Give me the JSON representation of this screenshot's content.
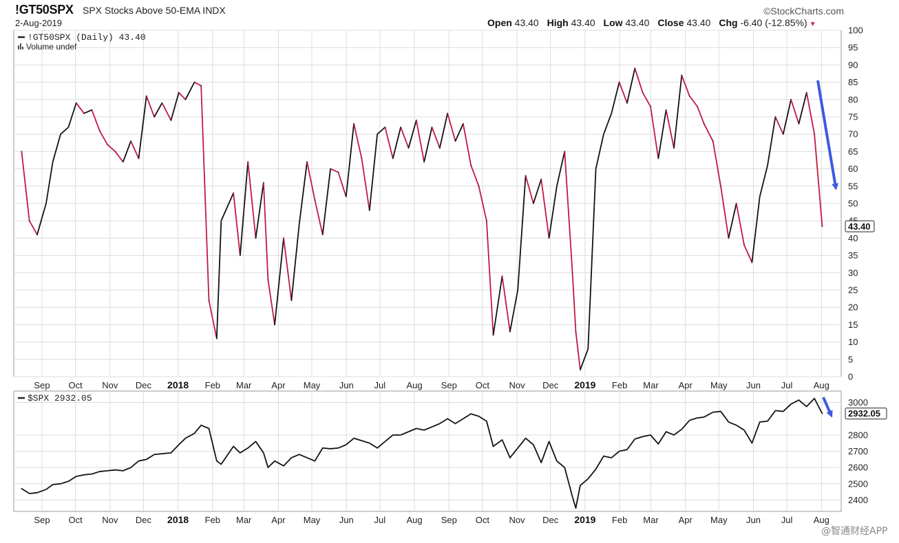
{
  "header": {
    "symbol": "!GT50SPX",
    "description": "SPX Stocks Above 50-EMA INDX",
    "date": "2-Aug-2019",
    "brand": "©StockCharts.com",
    "ohlc": [
      {
        "label": "Open",
        "value": "43.40"
      },
      {
        "label": "High",
        "value": "43.40"
      },
      {
        "label": "Low",
        "value": "43.40"
      },
      {
        "label": "Close",
        "value": "43.40"
      },
      {
        "label": "Chg",
        "value": "-6.40 (-12.85%)"
      }
    ]
  },
  "watermark": "@智通财经APP",
  "colors": {
    "up": "#111111",
    "down": "#c2183f",
    "arrow": "#3d5ae0",
    "grid": "#dcdcdc"
  },
  "chart_data": [
    {
      "type": "line",
      "legend": "!GT50SPX (Daily) 43.40",
      "legend2": "Volume undef",
      "last_label": "43.40",
      "ylim": [
        0,
        100
      ],
      "y_ticks": [
        0,
        5,
        10,
        15,
        20,
        25,
        30,
        35,
        40,
        45,
        50,
        55,
        60,
        65,
        70,
        75,
        80,
        85,
        90,
        95,
        100
      ],
      "x_ticks": [
        "Sep",
        "Oct",
        "Nov",
        "Dec",
        "2018",
        "Feb",
        "Mar",
        "Apr",
        "May",
        "Jun",
        "Jul",
        "Aug",
        "Sep",
        "Oct",
        "Nov",
        "Dec",
        "2019",
        "Feb",
        "Mar",
        "Apr",
        "May",
        "Jun",
        "Jul",
        "Aug"
      ],
      "series": [
        {
          "x": [
            "2017-08-14",
            "2017-08-21",
            "2017-08-28",
            "2017-09-05",
            "2017-09-11",
            "2017-09-18",
            "2017-09-25",
            "2017-10-02",
            "2017-10-09",
            "2017-10-16",
            "2017-10-23",
            "2017-10-30",
            "2017-11-06",
            "2017-11-13",
            "2017-11-20",
            "2017-11-27",
            "2017-12-04",
            "2017-12-11",
            "2017-12-18",
            "2017-12-26",
            "2018-01-02",
            "2018-01-08",
            "2018-01-16",
            "2018-01-22",
            "2018-01-29",
            "2018-02-05",
            "2018-02-09",
            "2018-02-20",
            "2018-02-26",
            "2018-03-05",
            "2018-03-12",
            "2018-03-19",
            "2018-03-23",
            "2018-03-29",
            "2018-04-06",
            "2018-04-13",
            "2018-04-20",
            "2018-04-27",
            "2018-05-04",
            "2018-05-11",
            "2018-05-18",
            "2018-05-25",
            "2018-06-01",
            "2018-06-08",
            "2018-06-15",
            "2018-06-22",
            "2018-06-29",
            "2018-07-06",
            "2018-07-13",
            "2018-07-20",
            "2018-07-27",
            "2018-08-03",
            "2018-08-10",
            "2018-08-17",
            "2018-08-24",
            "2018-08-31",
            "2018-09-07",
            "2018-09-14",
            "2018-09-21",
            "2018-09-28",
            "2018-10-05",
            "2018-10-11",
            "2018-10-19",
            "2018-10-26",
            "2018-11-02",
            "2018-11-09",
            "2018-11-16",
            "2018-11-23",
            "2018-11-30",
            "2018-12-07",
            "2018-12-14",
            "2018-12-21",
            "2018-12-24",
            "2018-12-28",
            "2019-01-04",
            "2019-01-11",
            "2019-01-18",
            "2019-01-25",
            "2019-02-01",
            "2019-02-08",
            "2019-02-15",
            "2019-02-22",
            "2019-03-01",
            "2019-03-08",
            "2019-03-15",
            "2019-03-22",
            "2019-03-29",
            "2019-04-05",
            "2019-04-12",
            "2019-04-18",
            "2019-04-26",
            "2019-05-03",
            "2019-05-10",
            "2019-05-17",
            "2019-05-24",
            "2019-05-31",
            "2019-06-07",
            "2019-06-14",
            "2019-06-21",
            "2019-06-28",
            "2019-07-05",
            "2019-07-12",
            "2019-07-19",
            "2019-07-26",
            "2019-08-02"
          ],
          "values": [
            65,
            45,
            41,
            50,
            62,
            70,
            72,
            79,
            76,
            77,
            71,
            67,
            65,
            62,
            68,
            63,
            81,
            75,
            79,
            74,
            82,
            80,
            85,
            84,
            22,
            11,
            45,
            53,
            35,
            62,
            40,
            56,
            28,
            15,
            40,
            22,
            44,
            62,
            51,
            41,
            60,
            59,
            52,
            73,
            63,
            48,
            70,
            72,
            63,
            72,
            66,
            74,
            62,
            72,
            66,
            76,
            68,
            73,
            61,
            55,
            45,
            12,
            29,
            13,
            25,
            58,
            50,
            57,
            40,
            55,
            65,
            30,
            13,
            2,
            8,
            60,
            70,
            76,
            85,
            79,
            89,
            82,
            78,
            63,
            77,
            66,
            87,
            81,
            78,
            73,
            68,
            55,
            40,
            50,
            38,
            33,
            52,
            61,
            75,
            70,
            80,
            73,
            82,
            70,
            43.4
          ]
        }
      ]
    },
    {
      "type": "line",
      "legend": "$SPX 2932.05",
      "last_label": "2932.05",
      "ylim": [
        2330,
        3070
      ],
      "y_ticks": [
        2400,
        2500,
        2600,
        2700,
        2800,
        3000
      ],
      "x_ticks": [
        "Sep",
        "Oct",
        "Nov",
        "Dec",
        "2018",
        "Feb",
        "Mar",
        "Apr",
        "May",
        "Jun",
        "Jul",
        "Aug",
        "Sep",
        "Oct",
        "Nov",
        "Dec",
        "2019",
        "Feb",
        "Mar",
        "Apr",
        "May",
        "Jun",
        "Jul",
        "Aug"
      ],
      "series": [
        {
          "x": [
            "2017-08-14",
            "2017-08-21",
            "2017-08-28",
            "2017-09-05",
            "2017-09-11",
            "2017-09-18",
            "2017-09-25",
            "2017-10-02",
            "2017-10-09",
            "2017-10-16",
            "2017-10-23",
            "2017-10-30",
            "2017-11-06",
            "2017-11-13",
            "2017-11-20",
            "2017-11-27",
            "2017-12-04",
            "2017-12-11",
            "2017-12-18",
            "2017-12-26",
            "2018-01-02",
            "2018-01-08",
            "2018-01-16",
            "2018-01-22",
            "2018-01-29",
            "2018-02-05",
            "2018-02-09",
            "2018-02-20",
            "2018-02-26",
            "2018-03-05",
            "2018-03-12",
            "2018-03-19",
            "2018-03-23",
            "2018-03-29",
            "2018-04-06",
            "2018-04-13",
            "2018-04-20",
            "2018-04-27",
            "2018-05-04",
            "2018-05-11",
            "2018-05-18",
            "2018-05-25",
            "2018-06-01",
            "2018-06-08",
            "2018-06-15",
            "2018-06-22",
            "2018-06-29",
            "2018-07-06",
            "2018-07-13",
            "2018-07-20",
            "2018-07-27",
            "2018-08-03",
            "2018-08-10",
            "2018-08-17",
            "2018-08-24",
            "2018-08-31",
            "2018-09-07",
            "2018-09-14",
            "2018-09-21",
            "2018-09-28",
            "2018-10-05",
            "2018-10-11",
            "2018-10-19",
            "2018-10-26",
            "2018-11-02",
            "2018-11-09",
            "2018-11-16",
            "2018-11-23",
            "2018-11-30",
            "2018-12-07",
            "2018-12-14",
            "2018-12-21",
            "2018-12-24",
            "2018-12-28",
            "2019-01-04",
            "2019-01-11",
            "2019-01-18",
            "2019-01-25",
            "2019-02-01",
            "2019-02-08",
            "2019-02-15",
            "2019-02-22",
            "2019-03-01",
            "2019-03-08",
            "2019-03-15",
            "2019-03-22",
            "2019-03-29",
            "2019-04-05",
            "2019-04-12",
            "2019-04-18",
            "2019-04-26",
            "2019-05-03",
            "2019-05-10",
            "2019-05-17",
            "2019-05-24",
            "2019-05-31",
            "2019-06-07",
            "2019-06-14",
            "2019-06-21",
            "2019-06-28",
            "2019-07-05",
            "2019-07-12",
            "2019-07-19",
            "2019-07-26",
            "2019-08-02"
          ],
          "values": [
            2470,
            2440,
            2445,
            2465,
            2495,
            2500,
            2515,
            2545,
            2555,
            2560,
            2575,
            2580,
            2585,
            2580,
            2600,
            2640,
            2650,
            2680,
            2685,
            2690,
            2740,
            2780,
            2810,
            2860,
            2840,
            2640,
            2620,
            2730,
            2690,
            2720,
            2760,
            2690,
            2600,
            2640,
            2610,
            2660,
            2680,
            2660,
            2640,
            2720,
            2715,
            2720,
            2740,
            2780,
            2765,
            2750,
            2720,
            2760,
            2800,
            2800,
            2820,
            2840,
            2830,
            2850,
            2870,
            2900,
            2870,
            2900,
            2930,
            2915,
            2885,
            2730,
            2770,
            2660,
            2720,
            2780,
            2740,
            2630,
            2760,
            2640,
            2600,
            2420,
            2350,
            2490,
            2530,
            2590,
            2670,
            2660,
            2700,
            2710,
            2775,
            2790,
            2800,
            2745,
            2820,
            2800,
            2835,
            2890,
            2905,
            2910,
            2940,
            2945,
            2880,
            2860,
            2830,
            2750,
            2880,
            2885,
            2950,
            2945,
            2990,
            3015,
            2975,
            3025,
            2932.05
          ]
        }
      ]
    }
  ]
}
